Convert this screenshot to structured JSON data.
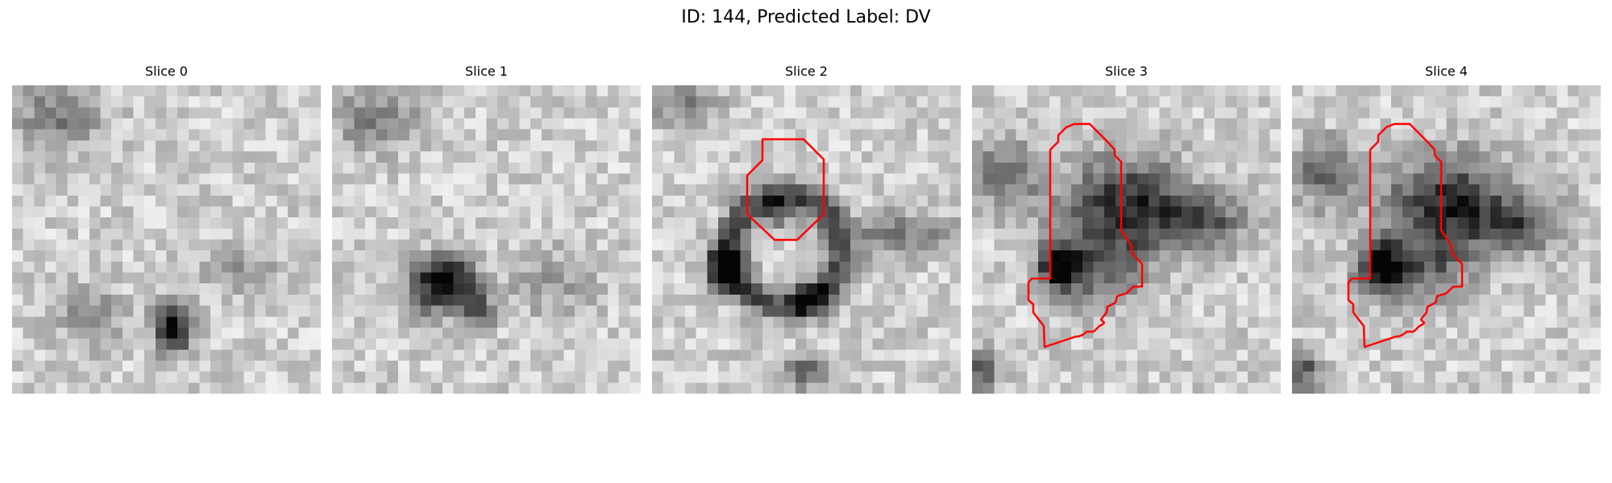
{
  "figure": {
    "title": "ID: 144, Predicted Label: DV"
  },
  "panels": [
    {
      "title": "Slice 0",
      "has_contour": false
    },
    {
      "title": "Slice 1",
      "has_contour": false
    },
    {
      "title": "Slice 2",
      "has_contour": true
    },
    {
      "title": "Slice 3",
      "has_contour": true
    },
    {
      "title": "Slice 4",
      "has_contour": true
    }
  ],
  "colors": {
    "contour": "#ff0000",
    "background": "#ffffff",
    "dark_pixel": "#000000",
    "light_pixel": "#ffffff"
  },
  "image_style": {
    "colormap": "gray_reversed",
    "grid_size": 28
  }
}
